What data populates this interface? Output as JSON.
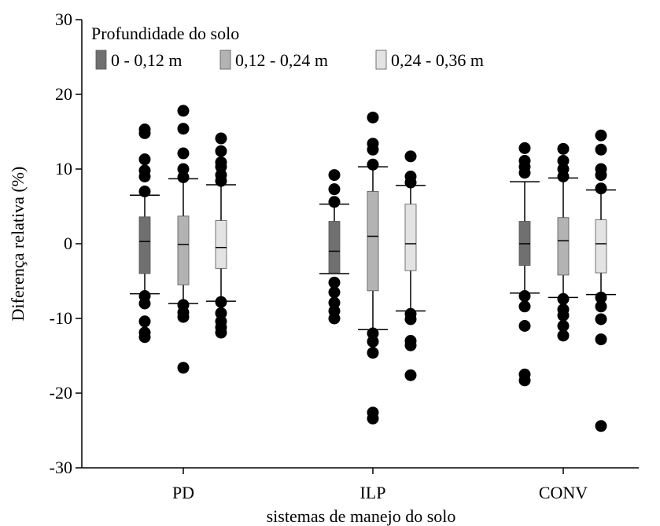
{
  "chart_data": {
    "type": "boxplot",
    "ylabel": "Diferença relativa (%)",
    "xlabel": "sistemas de manejo do solo",
    "ylim": [
      -30,
      30
    ],
    "yticks": [
      30,
      20,
      10,
      0,
      -10,
      -20,
      -30
    ],
    "ytick_labels": [
      "30",
      "20",
      "10",
      "0",
      "-10",
      "-20",
      "-30"
    ],
    "grid": false,
    "legend_title": "Profundidade do solo",
    "legend_position": "top-left",
    "categories": [
      "PD",
      "ILP",
      "CONV"
    ],
    "series": [
      {
        "name": "0 - 0,12 m",
        "color": "#707070",
        "boxes": [
          {
            "whisker_low": -6.7,
            "q1": -4.0,
            "median": 0.3,
            "q3": 3.6,
            "whisker_high": 6.5,
            "outliers": [
              15.3,
              14.8,
              11.3,
              9.8,
              9.0,
              7.0,
              -7.0,
              -8.0,
              -10.4,
              -11.9,
              -12.5
            ]
          },
          {
            "whisker_low": -4.0,
            "q1": -3.9,
            "median": -1.0,
            "q3": 3.0,
            "whisker_high": 5.3,
            "outliers": [
              9.2,
              7.3,
              5.6,
              -5.2,
              -6.5,
              -7.9,
              -9.0,
              -10.0
            ]
          },
          {
            "whisker_low": -6.6,
            "q1": -2.9,
            "median": 0.0,
            "q3": 3.0,
            "whisker_high": 8.3,
            "outliers": [
              12.8,
              11.1,
              10.3,
              9.5,
              -7.0,
              -8.4,
              -11.0,
              -17.5,
              -18.3
            ]
          }
        ]
      },
      {
        "name": "0,12 - 0,24 m",
        "color": "#b3b3b3",
        "boxes": [
          {
            "whisker_low": -8.0,
            "q1": -5.5,
            "median": -0.1,
            "q3": 3.7,
            "whisker_high": 8.7,
            "outliers": [
              17.8,
              15.4,
              12.1,
              10.0,
              8.9,
              -8.2,
              -9.2,
              -9.8,
              -16.6
            ]
          },
          {
            "whisker_low": -11.5,
            "q1": -6.3,
            "median": 1.0,
            "q3": 7.0,
            "whisker_high": 10.3,
            "outliers": [
              16.9,
              13.4,
              12.6,
              10.6,
              -12.0,
              -13.1,
              -14.6,
              -22.6,
              -23.4
            ]
          },
          {
            "whisker_low": -7.2,
            "q1": -4.2,
            "median": 0.4,
            "q3": 3.5,
            "whisker_high": 8.8,
            "outliers": [
              12.7,
              11.1,
              10.0,
              9.0,
              -7.4,
              -8.8,
              -9.6,
              -11.0,
              -12.3
            ]
          }
        ]
      },
      {
        "name": "0,24 - 0,36 m",
        "color": "#e3e3e3",
        "boxes": [
          {
            "whisker_low": -7.7,
            "q1": -3.3,
            "median": -0.5,
            "q3": 3.1,
            "whisker_high": 7.9,
            "outliers": [
              14.1,
              12.4,
              10.9,
              10.3,
              9.2,
              8.4,
              -7.8,
              -9.3,
              -10.4,
              -11.2,
              -11.9
            ]
          },
          {
            "whisker_low": -9.0,
            "q1": -3.6,
            "median": 0.0,
            "q3": 5.3,
            "whisker_high": 7.8,
            "outliers": [
              11.7,
              9.0,
              8.2,
              -9.4,
              -10.1,
              -13.0,
              -13.6,
              -17.6
            ]
          },
          {
            "whisker_low": -6.8,
            "q1": -3.9,
            "median": 0.0,
            "q3": 3.2,
            "whisker_high": 7.2,
            "outliers": [
              14.5,
              12.6,
              10.0,
              9.2,
              7.4,
              -7.2,
              -8.4,
              -10.1,
              -12.8,
              -24.4
            ]
          }
        ]
      }
    ]
  }
}
